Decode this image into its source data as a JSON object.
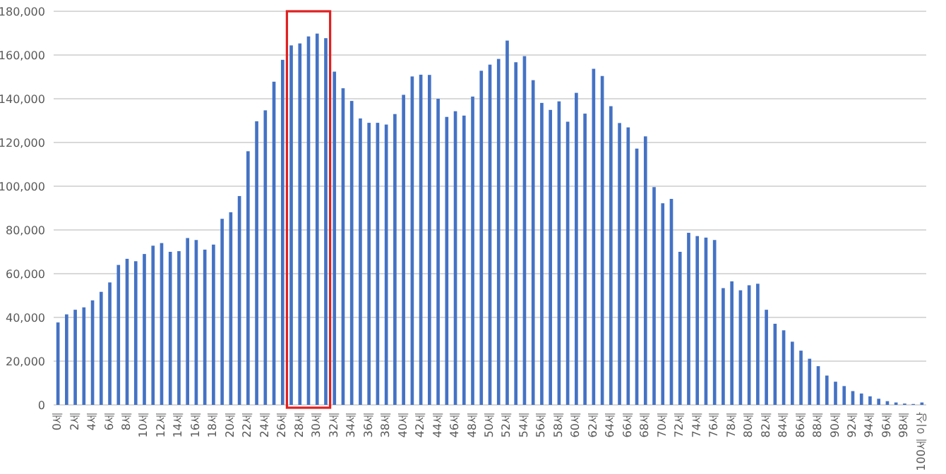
{
  "chart_data": {
    "type": "bar",
    "categories": [
      "0세",
      null,
      "2세",
      null,
      "4세",
      null,
      "6세",
      null,
      "8세",
      null,
      "10세",
      null,
      "12세",
      null,
      "14세",
      null,
      "16세",
      null,
      "18세",
      null,
      "20세",
      null,
      "22세",
      null,
      "24세",
      null,
      "26세",
      null,
      "28세",
      null,
      "30세",
      null,
      "32세",
      null,
      "34세",
      null,
      "36세",
      null,
      "38세",
      null,
      "40세",
      null,
      "42세",
      null,
      "44세",
      null,
      "46세",
      null,
      "48세",
      null,
      "50세",
      null,
      "52세",
      null,
      "54세",
      null,
      "56세",
      null,
      "58세",
      null,
      "60세",
      null,
      "62세",
      null,
      "64세",
      null,
      "66세",
      null,
      "68세",
      null,
      "70세",
      null,
      "72세",
      null,
      "74세",
      null,
      "76세",
      null,
      "78세",
      null,
      "80세",
      null,
      "82세",
      null,
      "84세",
      null,
      "86세",
      null,
      "88세",
      null,
      "90세",
      null,
      "92세",
      null,
      "94세",
      null,
      "96세",
      null,
      "98세",
      null,
      "100세 이상"
    ],
    "values": [
      37700,
      41400,
      43500,
      44600,
      47800,
      51700,
      56000,
      64000,
      66800,
      65700,
      69000,
      72800,
      74000,
      70000,
      70300,
      76300,
      75400,
      71000,
      73300,
      85100,
      88100,
      95500,
      116000,
      129700,
      134700,
      147800,
      157800,
      164400,
      165300,
      168500,
      169800,
      167700,
      152400,
      144800,
      139000,
      131000,
      129000,
      129000,
      128200,
      133000,
      141800,
      150200,
      151000,
      150900,
      140000,
      131700,
      134300,
      132300,
      141000,
      152800,
      155600,
      158200,
      166600,
      156700,
      159500,
      148500,
      138100,
      134900,
      138800,
      129500,
      142700,
      133200,
      153700,
      150400,
      136600,
      128900,
      126900,
      117200,
      122800,
      99600,
      92200,
      94200,
      70000,
      78700,
      77200,
      76500,
      75400,
      53400,
      56500,
      52400,
      54700,
      55400,
      43500,
      37100,
      34100,
      28900,
      24800,
      21100,
      17700,
      13400,
      10600,
      8600,
      6300,
      5200,
      3900,
      2800,
      1700,
      1100,
      600,
      400,
      1100
    ],
    "color": "#4472c4",
    "ylim": [
      0,
      180000
    ],
    "yticks": [
      0,
      {
        "value": 20000,
        "label": "20,000"
      },
      {
        "value": 40000,
        "label": "40,000"
      },
      {
        "value": 60000,
        "label": "60,000"
      },
      {
        "value": 80000,
        "label": "80,000"
      },
      {
        "value": 100000,
        "label": "100,000"
      },
      {
        "value": 120000,
        "label": "120,000"
      },
      {
        "value": 140000,
        "label": "140,000"
      },
      {
        "value": 160000,
        "label": "160,000"
      },
      {
        "value": 180000,
        "label": "180,000"
      }
    ],
    "grid": "y"
  }
}
